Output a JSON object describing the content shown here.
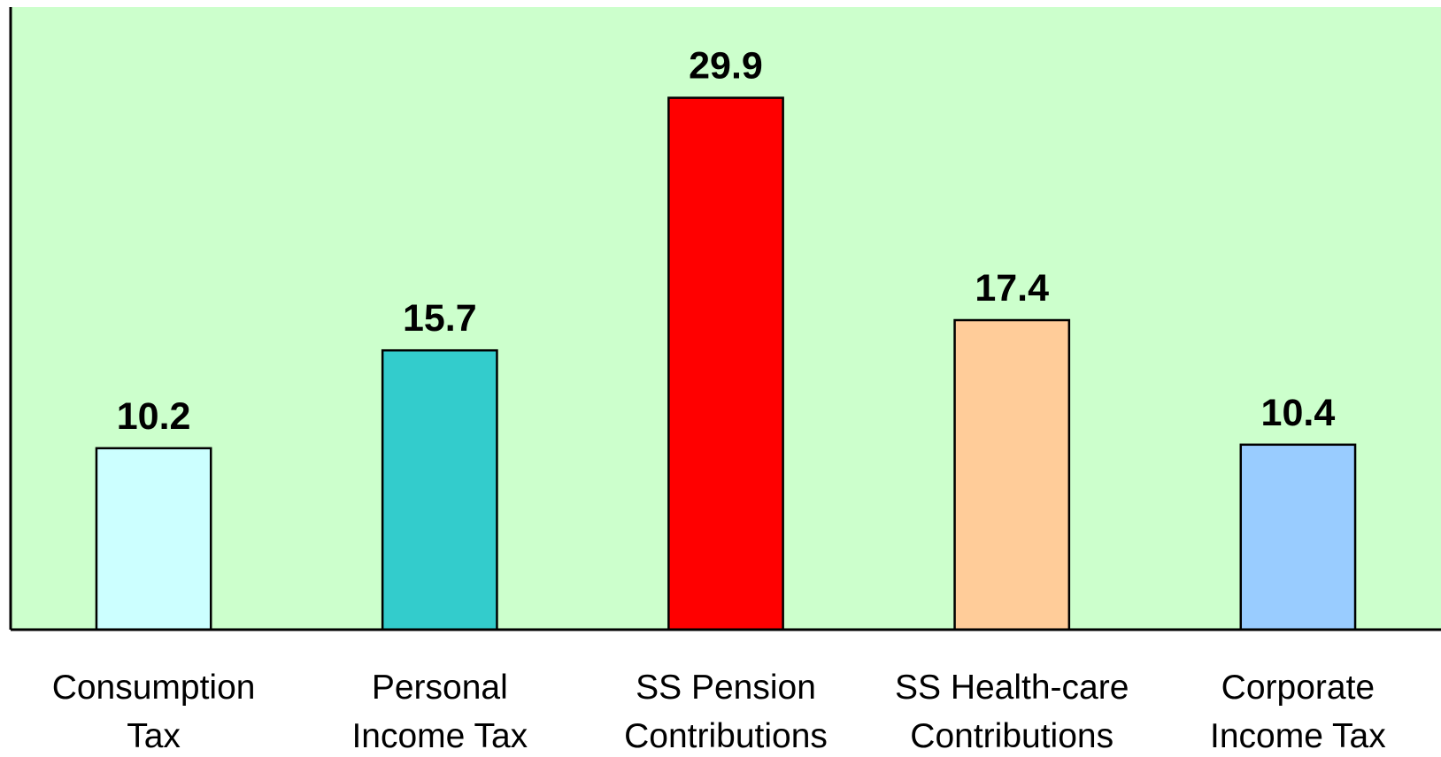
{
  "chart_data": {
    "type": "bar",
    "categories": [
      "Consumption\nTax",
      "Personal\nIncome Tax",
      "SS Pension\nContributions",
      "SS Health-care\nContributions",
      "Corporate\nIncome Tax"
    ],
    "values": [
      10.2,
      15.7,
      29.9,
      17.4,
      10.4
    ],
    "colors": [
      "#ccffff",
      "#33cccc",
      "#ff0000",
      "#ffcc99",
      "#99ccff"
    ],
    "background": "#ccffcc",
    "ylim": [
      0,
      35
    ]
  }
}
